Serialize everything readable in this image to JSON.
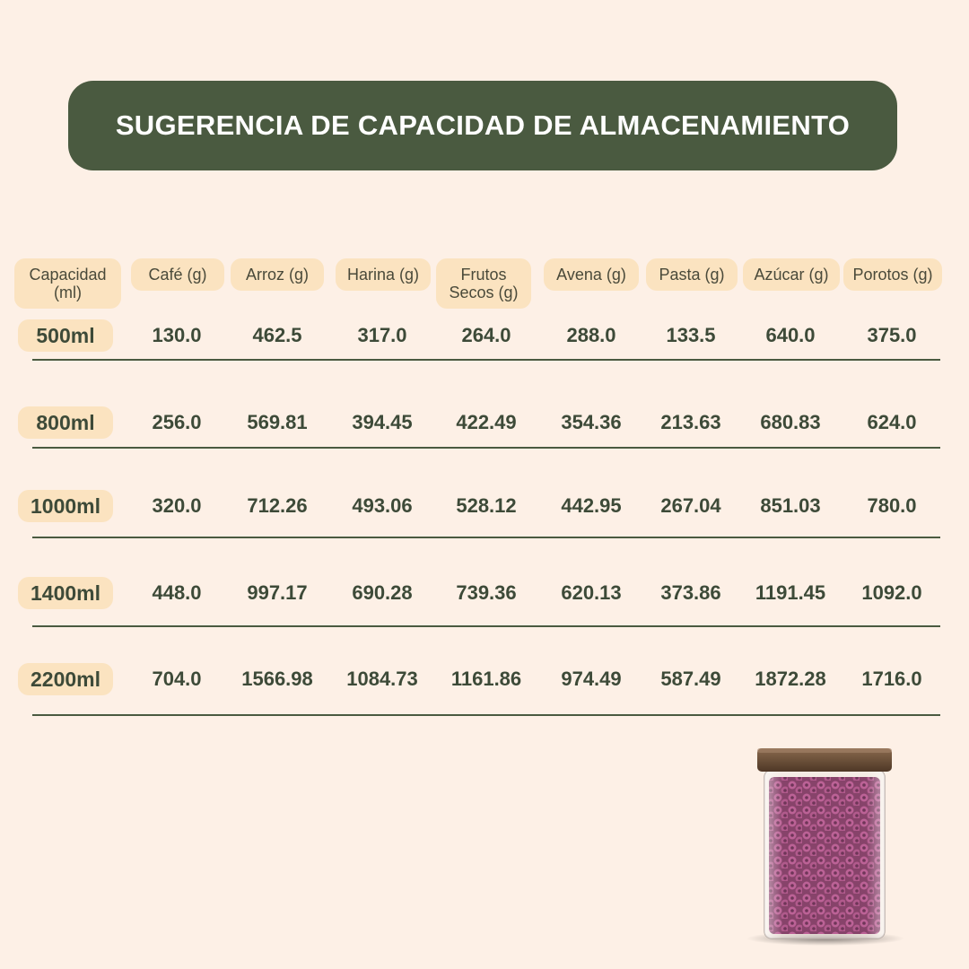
{
  "title": "SUGERENCIA DE CAPACIDAD DE ALMACENAMIENTO",
  "table": {
    "headers": [
      "Capacidad (ml)",
      "Café (g)",
      "Arroz (g)",
      "Harina (g)",
      "Frutos Secos (g)",
      "Avena (g)",
      "Pasta (g)",
      "Azúcar (g)",
      "Porotos (g)"
    ],
    "rows": [
      {
        "capacity": "500ml",
        "values": [
          "130.0",
          "462.5",
          "317.0",
          "264.0",
          "288.0",
          "133.5",
          "640.0",
          "375.0"
        ]
      },
      {
        "capacity": "800ml",
        "values": [
          "256.0",
          "569.81",
          "394.45",
          "422.49",
          "354.36",
          "213.63",
          "680.83",
          "624.0"
        ]
      },
      {
        "capacity": "1000ml",
        "values": [
          "320.0",
          "712.26",
          "493.06",
          "528.12",
          "442.95",
          "267.04",
          "851.03",
          "780.0"
        ]
      },
      {
        "capacity": "1400ml",
        "values": [
          "448.0",
          "997.17",
          "690.28",
          "739.36",
          "620.13",
          "373.86",
          "1191.45",
          "1092.0"
        ]
      },
      {
        "capacity": "2200ml",
        "values": [
          "704.0",
          "1566.98",
          "1084.73",
          "1161.86",
          "974.49",
          "587.49",
          "1872.28",
          "1716.0"
        ]
      }
    ]
  },
  "colors": {
    "background": "#fdf0e6",
    "banner": "#4a5a40",
    "pill": "#fbe3c0",
    "text": "#3d4a38"
  },
  "image": {
    "subject": "glass-jar-with-purple-cereal-icon"
  }
}
